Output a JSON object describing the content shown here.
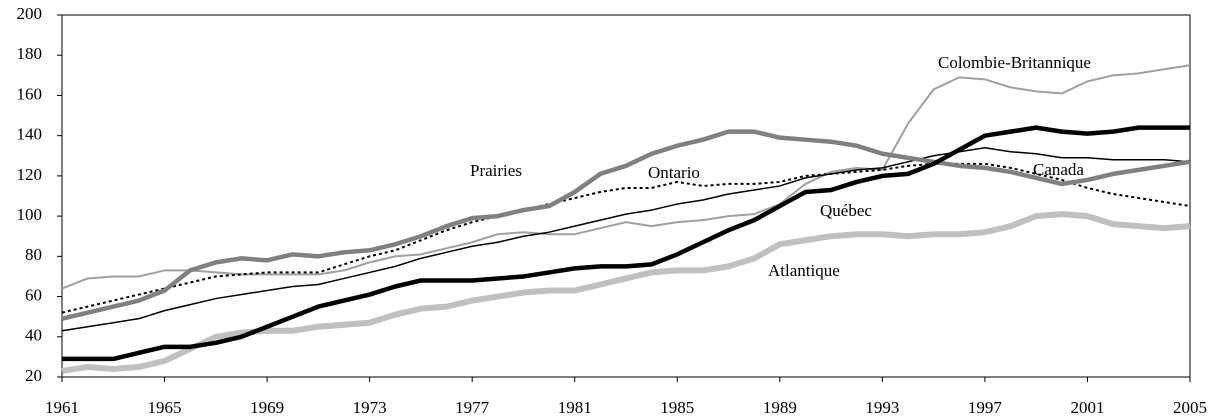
{
  "chart_data": {
    "type": "line",
    "x": [
      1961,
      1962,
      1963,
      1964,
      1965,
      1966,
      1967,
      1968,
      1969,
      1970,
      1971,
      1972,
      1973,
      1974,
      1975,
      1976,
      1977,
      1978,
      1979,
      1980,
      1981,
      1982,
      1983,
      1984,
      1985,
      1986,
      1987,
      1988,
      1989,
      1990,
      1991,
      1992,
      1993,
      1994,
      1995,
      1996,
      1997,
      1998,
      1999,
      2000,
      2001,
      2002,
      2003,
      2004,
      2005
    ],
    "xlim": [
      1961,
      2005
    ],
    "xticks": [
      1961,
      1965,
      1969,
      1973,
      1977,
      1981,
      1985,
      1989,
      1993,
      1997,
      2001,
      2005
    ],
    "ylim": [
      20,
      200
    ],
    "yticks": [
      20,
      40,
      60,
      80,
      100,
      120,
      140,
      160,
      180,
      200
    ],
    "series": [
      {
        "name": "Colombie-Britannique",
        "color": "#a0a0a0",
        "values": [
          64,
          69,
          70,
          70,
          73,
          73,
          72,
          71,
          71,
          71,
          71,
          73,
          77,
          80,
          81,
          84,
          87,
          91,
          92,
          91,
          91,
          94,
          97,
          95,
          97,
          98,
          100,
          101,
          106,
          116,
          122,
          124,
          123,
          146,
          163,
          169,
          168,
          164,
          162,
          161,
          167,
          170,
          171,
          173,
          175
        ]
      },
      {
        "name": "Ontario",
        "color": "#000000",
        "values": [
          52,
          55,
          58,
          61,
          64,
          67,
          70,
          71,
          72,
          72,
          72,
          76,
          80,
          83,
          88,
          93,
          97,
          100,
          103,
          106,
          109,
          112,
          114,
          114,
          117,
          115,
          116,
          116,
          117,
          120,
          121,
          122,
          123,
          125,
          126,
          126,
          126,
          124,
          121,
          118,
          114,
          111,
          109,
          107,
          105
        ]
      },
      {
        "name": "Canada",
        "color": "#000000",
        "values": [
          43,
          45,
          47,
          49,
          53,
          56,
          59,
          61,
          63,
          65,
          66,
          69,
          72,
          75,
          79,
          82,
          85,
          87,
          90,
          92,
          95,
          98,
          101,
          103,
          106,
          108,
          111,
          113,
          115,
          119,
          121,
          123,
          124,
          127,
          130,
          132,
          134,
          132,
          131,
          129,
          129,
          128,
          128,
          128,
          127
        ]
      },
      {
        "name": "Prairies",
        "color": "#808080",
        "values": [
          49,
          52,
          55,
          58,
          63,
          73,
          77,
          79,
          78,
          81,
          80,
          82,
          83,
          86,
          90,
          95,
          99,
          100,
          103,
          105,
          112,
          121,
          125,
          131,
          135,
          138,
          142,
          142,
          139,
          138,
          137,
          135,
          131,
          129,
          127,
          125,
          124,
          122,
          119,
          116,
          118,
          121,
          123,
          125,
          127
        ]
      },
      {
        "name": "Atlantique",
        "color": "#c0c0c0",
        "values": [
          23,
          25,
          24,
          25,
          28,
          34,
          40,
          42,
          43,
          43,
          45,
          46,
          47,
          51,
          54,
          55,
          58,
          60,
          62,
          63,
          63,
          66,
          69,
          72,
          73,
          73,
          75,
          79,
          86,
          88,
          90,
          91,
          91,
          90,
          91,
          91,
          92,
          95,
          100,
          101,
          100,
          96,
          95,
          94,
          95
        ]
      },
      {
        "name": "Québec",
        "color": "#000000",
        "values": [
          29,
          29,
          29,
          32,
          35,
          35,
          37,
          40,
          45,
          50,
          55,
          58,
          61,
          65,
          68,
          68,
          68,
          69,
          70,
          72,
          74,
          75,
          75,
          76,
          81,
          87,
          93,
          98,
          105,
          112,
          113,
          117,
          120,
          121,
          126,
          133,
          140,
          142,
          144,
          142,
          141,
          142,
          144,
          144,
          144
        ]
      }
    ]
  }
}
